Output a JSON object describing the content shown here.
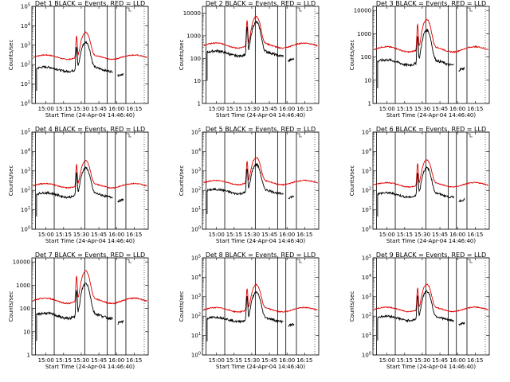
{
  "colors": {
    "events": "#000000",
    "lld": "#e00000",
    "axis": "#000000",
    "background": "#ffffff"
  },
  "xlabel": "Start Time (24-Apr-04 14:46:40)",
  "ylabel": "Counts/sec",
  "x_tick_labels": [
    "15:00",
    "15:15",
    "15:30",
    "15:45",
    "16:00",
    "16:15"
  ],
  "x_ticks_min": [
    840,
    855,
    870,
    885,
    900,
    915
  ],
  "x_range_min": [
    828,
    927
  ],
  "chart_data": [
    {
      "type": "line",
      "title": "Det 1 BLACK = Events, RED = LLD",
      "log": true,
      "ylim": [
        1,
        100000
      ],
      "y_tick_labels": [
        "10^0",
        "10^1",
        "10^2",
        "10^3",
        "10^4",
        "10^5"
      ],
      "y_ticks": [
        1,
        10,
        100,
        1000,
        10000,
        100000
      ],
      "events_level": 60,
      "lld_level": 250
    },
    {
      "type": "line",
      "title": "Det 2 BLACK = Events, RED = LLD",
      "log": true,
      "ylim": [
        1,
        20000
      ],
      "y_tick_labels": [
        "1",
        "10",
        "100",
        "1000",
        "10000"
      ],
      "y_ticks": [
        1,
        10,
        100,
        1000,
        10000
      ],
      "events_level": 170,
      "lld_level": 380
    },
    {
      "type": "line",
      "title": "Det 3 BLACK = Events, RED = LLD",
      "log": true,
      "ylim": [
        1,
        15000
      ],
      "y_tick_labels": [
        "1",
        "10",
        "100",
        "1000",
        "10000"
      ],
      "y_ticks": [
        1,
        10,
        100,
        1000,
        10000
      ],
      "events_level": 60,
      "lld_level": 220
    },
    {
      "type": "line",
      "title": "Det 4 BLACK = Events, RED = LLD",
      "log": true,
      "ylim": [
        1,
        100000
      ],
      "y_tick_labels": [
        "10^0",
        "10^1",
        "10^2",
        "10^3",
        "10^4",
        "10^5"
      ],
      "y_ticks": [
        1,
        10,
        100,
        1000,
        10000,
        100000
      ],
      "events_level": 60,
      "lld_level": 180
    },
    {
      "type": "line",
      "title": "Det 5 BLACK = Events, RED = LLD",
      "log": true,
      "ylim": [
        1,
        100000
      ],
      "y_tick_labels": [
        "10^0",
        "10^1",
        "10^2",
        "10^3",
        "10^4",
        "10^5"
      ],
      "y_ticks": [
        1,
        10,
        100,
        1000,
        10000,
        100000
      ],
      "events_level": 90,
      "lld_level": 260
    },
    {
      "type": "line",
      "title": "Det 6 BLACK = Events, RED = LLD",
      "log": true,
      "ylim": [
        1,
        100000
      ],
      "y_tick_labels": [
        "10^0",
        "10^1",
        "10^2",
        "10^3",
        "10^4",
        "10^5"
      ],
      "y_ticks": [
        1,
        10,
        100,
        1000,
        10000,
        100000
      ],
      "events_level": 60,
      "lld_level": 200
    },
    {
      "type": "line",
      "title": "Det 7 BLACK = Events, RED = LLD",
      "log": true,
      "ylim": [
        1,
        15000
      ],
      "y_tick_labels": [
        "1",
        "10",
        "100",
        "1000",
        "10000"
      ],
      "y_ticks": [
        1,
        10,
        100,
        1000,
        10000
      ],
      "events_level": 50,
      "lld_level": 220
    },
    {
      "type": "line",
      "title": "Det 8 BLACK = Events, RED = LLD",
      "log": true,
      "ylim": [
        1,
        100000
      ],
      "y_tick_labels": [
        "10^0",
        "10^1",
        "10^2",
        "10^3",
        "10^4",
        "10^5"
      ],
      "y_ticks": [
        1,
        10,
        100,
        1000,
        10000,
        100000
      ],
      "events_level": 70,
      "lld_level": 220
    },
    {
      "type": "line",
      "title": "Det 9 BLACK = Events, RED = LLD",
      "log": true,
      "ylim": [
        1,
        100000
      ],
      "y_tick_labels": [
        "10^0",
        "10^1",
        "10^2",
        "10^3",
        "10^4",
        "10^5"
      ],
      "y_ticks": [
        1,
        10,
        100,
        1000,
        10000,
        100000
      ],
      "events_level": 80,
      "lld_level": 230
    }
  ],
  "vertical_markers_min": [
    831,
    847,
    873,
    892,
    899,
    908
  ]
}
